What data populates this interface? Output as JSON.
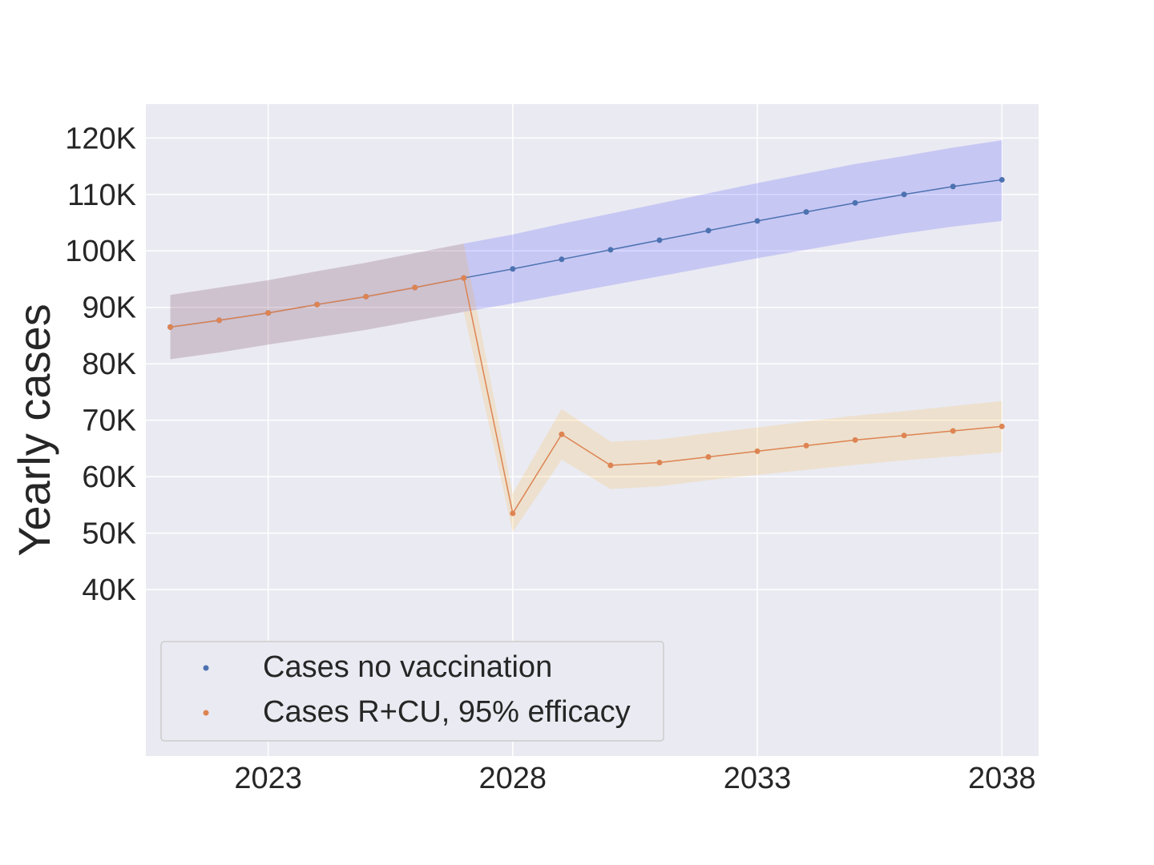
{
  "chart_data": {
    "type": "line",
    "title": "",
    "xlabel": "",
    "ylabel": "Yearly cases",
    "x": [
      2021,
      2022,
      2023,
      2024,
      2025,
      2026,
      2027,
      2028,
      2029,
      2030,
      2031,
      2032,
      2033,
      2034,
      2035,
      2036,
      2037,
      2038
    ],
    "xlim": [
      2020.5,
      2038.75
    ],
    "ylim": [
      10500,
      126000
    ],
    "x_ticks": [
      2023,
      2028,
      2033,
      2038
    ],
    "x_tick_labels": [
      "2023",
      "2028",
      "2033",
      "2038"
    ],
    "y_ticks": [
      40000,
      50000,
      60000,
      70000,
      80000,
      90000,
      100000,
      110000,
      120000
    ],
    "y_tick_labels": [
      "40K",
      "50K",
      "60K",
      "70K",
      "80K",
      "90K",
      "100K",
      "110K",
      "120K"
    ],
    "grid": true,
    "legend_position": "lower-left",
    "series": [
      {
        "name": "Cases no vaccination",
        "color": "#4c72b0",
        "band_color": "#0000ff",
        "x": [
          2021,
          2022,
          2023,
          2024,
          2025,
          2026,
          2027,
          2028,
          2029,
          2030,
          2031,
          2032,
          2033,
          2034,
          2035,
          2036,
          2037,
          2038
        ],
        "values": [
          86500,
          87700,
          89000,
          90500,
          91900,
          93500,
          95200,
          96800,
          98500,
          100200,
          101900,
          103600,
          105300,
          106900,
          108500,
          110000,
          111400,
          112600
        ],
        "lower": [
          80800,
          82000,
          83400,
          84700,
          86000,
          87600,
          89200,
          90700,
          92300,
          93900,
          95500,
          97100,
          98700,
          100200,
          101700,
          103100,
          104300,
          105300
        ],
        "upper": [
          92200,
          93500,
          94800,
          96400,
          97900,
          99600,
          101300,
          102900,
          104800,
          106600,
          108400,
          110200,
          112000,
          113700,
          115400,
          116800,
          118300,
          119600
        ]
      },
      {
        "name": "Cases R+CU, 95% efficacy",
        "color": "#dd8452",
        "band_color": "#ffa500",
        "x": [
          2021,
          2022,
          2023,
          2024,
          2025,
          2026,
          2027,
          2028,
          2029,
          2030,
          2031,
          2032,
          2033,
          2034,
          2035,
          2036,
          2037,
          2038
        ],
        "values": [
          86500,
          87700,
          89000,
          90500,
          91900,
          93500,
          95200,
          53500,
          67500,
          62000,
          62500,
          63500,
          64500,
          65500,
          66500,
          67300,
          68100,
          68900
        ],
        "lower": [
          80800,
          82000,
          83400,
          84700,
          86000,
          87600,
          89200,
          50200,
          63000,
          57800,
          58300,
          59400,
          60300,
          61200,
          62100,
          62900,
          63600,
          64300
        ],
        "upper": [
          92200,
          93500,
          94800,
          96400,
          97900,
          99600,
          101300,
          57000,
          72000,
          66200,
          66600,
          67700,
          68700,
          69800,
          70800,
          71600,
          72500,
          73400
        ]
      }
    ]
  }
}
